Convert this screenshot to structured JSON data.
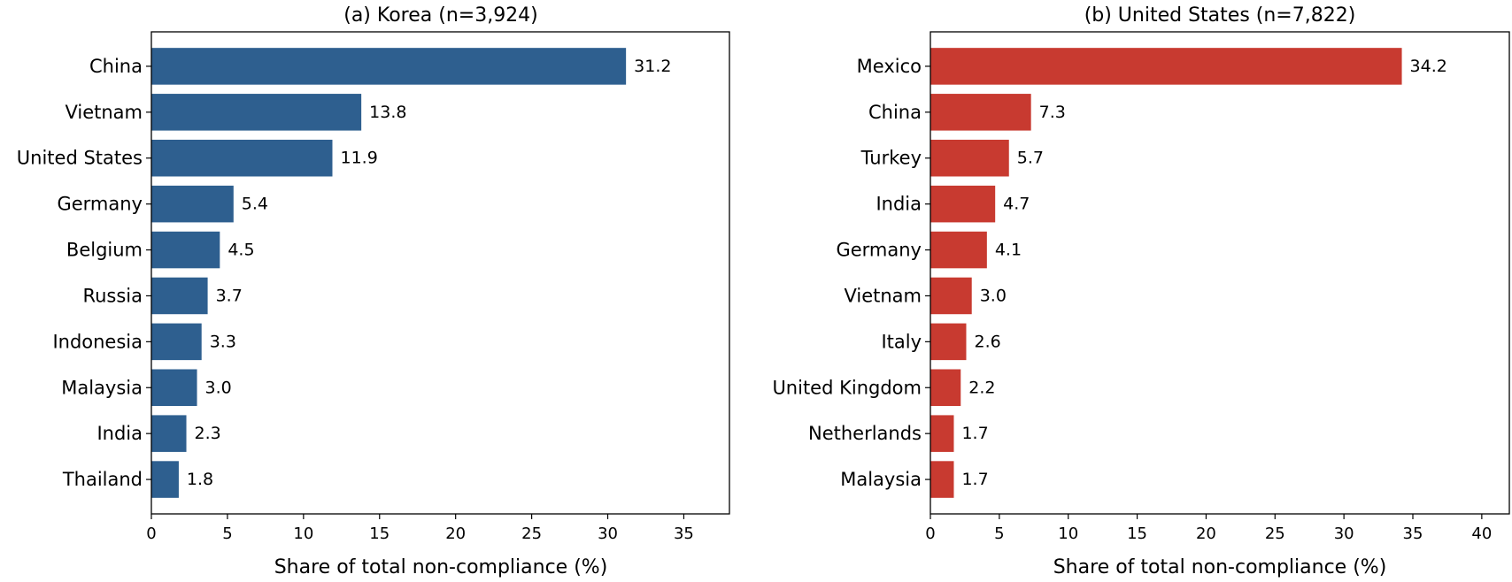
{
  "chart_data": [
    {
      "type": "bar",
      "orientation": "horizontal",
      "title": "(a) Korea (n=3,924)",
      "xlabel": "Share of total non-compliance (%)",
      "ylabel": "",
      "categories": [
        "China",
        "Vietnam",
        "United States",
        "Germany",
        "Belgium",
        "Russia",
        "Indonesia",
        "Malaysia",
        "India",
        "Thailand"
      ],
      "values": [
        31.2,
        13.8,
        11.9,
        5.4,
        4.5,
        3.7,
        3.3,
        3.0,
        2.3,
        1.8
      ],
      "value_labels": [
        "31.2",
        "13.8",
        "11.9",
        "5.4",
        "4.5",
        "3.7",
        "3.3",
        "3.0",
        "2.3",
        "1.8"
      ],
      "xlim": [
        0,
        38
      ],
      "xticks": [
        0,
        5,
        10,
        15,
        20,
        25,
        30,
        35
      ],
      "color": "#2e5f8f",
      "grid": false,
      "legend": "none"
    },
    {
      "type": "bar",
      "orientation": "horizontal",
      "title": "(b) United States (n=7,822)",
      "xlabel": "Share of total non-compliance (%)",
      "ylabel": "",
      "categories": [
        "Mexico",
        "China",
        "Turkey",
        "India",
        "Germany",
        "Vietnam",
        "Italy",
        "United Kingdom",
        "Netherlands",
        "Malaysia"
      ],
      "values": [
        34.2,
        7.3,
        5.7,
        4.7,
        4.1,
        3.0,
        2.6,
        2.2,
        1.7,
        1.7
      ],
      "value_labels": [
        "34.2",
        "7.3",
        "5.7",
        "4.7",
        "4.1",
        "3.0",
        "2.6",
        "2.2",
        "1.7",
        "1.7"
      ],
      "xlim": [
        0,
        42
      ],
      "xticks": [
        0,
        5,
        10,
        15,
        20,
        25,
        30,
        35,
        40
      ],
      "color": "#c83a30",
      "grid": false,
      "legend": "none"
    }
  ]
}
